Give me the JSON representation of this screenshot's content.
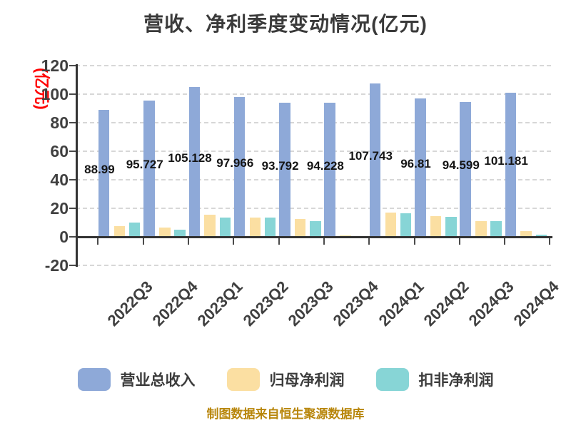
{
  "footer_note": "制图数据来自恒生聚源数据库",
  "colors": {
    "title": "#3A3A3A",
    "axis": "#333333",
    "tick_labels": "#404040",
    "value_labels": "#151515",
    "unit_label": "#FF0000",
    "footer": "#B8860B",
    "grid": "#D7D7D7",
    "background": "#FFFFFF"
  },
  "chart_data": {
    "type": "bar",
    "title": "营收、净利季度变动情况(亿元)",
    "y_axis_unit": "(亿元)",
    "categories": [
      "2022Q3",
      "2022Q4",
      "2023Q1",
      "2023Q2",
      "2023Q3",
      "2023Q4",
      "2024Q1",
      "2024Q2",
      "2024Q3",
      "2024Q4"
    ],
    "series": [
      {
        "name": "营业总收入",
        "color": "#8EA9D8",
        "values": [
          88.99,
          95.727,
          105.128,
          97.966,
          93.792,
          94.228,
          107.743,
          96.81,
          94.599,
          101.181
        ],
        "data_labels": [
          "88.99",
          "95.727",
          "105.128",
          "97.966",
          "93.792",
          "94.228",
          "107.743",
          "96.81",
          "94.599",
          "101.181"
        ]
      },
      {
        "name": "归母净利润",
        "color": "#FBDFA2",
        "values": [
          7.7,
          6.5,
          15.4,
          13.5,
          12.7,
          0.8,
          17.2,
          14.7,
          11.0,
          4.2
        ]
      },
      {
        "name": "扣非净利润",
        "color": "#87D5D6",
        "values": [
          10.2,
          4.9,
          13.5,
          13.5,
          11.0,
          0.5,
          16.5,
          13.9,
          11.0,
          1.7
        ]
      }
    ],
    "ylim": [
      -20,
      120
    ],
    "y_ticks": [
      -20,
      0,
      20,
      40,
      60,
      80,
      100,
      120
    ],
    "grid": {
      "horizontal": true,
      "style": "dashed"
    },
    "legend_position": "bottom"
  }
}
